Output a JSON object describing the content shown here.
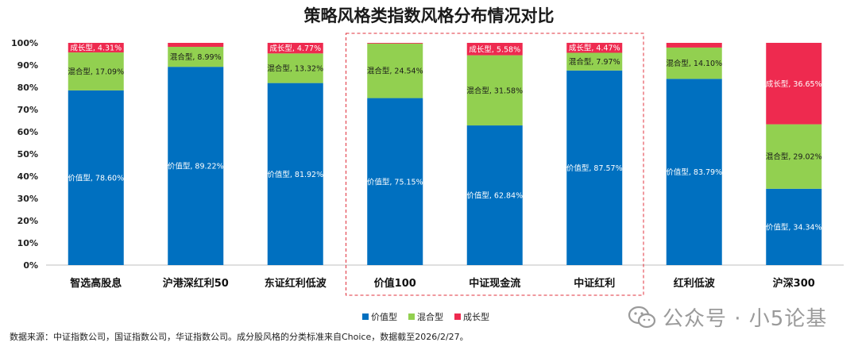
{
  "chart_data": {
    "type": "bar",
    "stacked": true,
    "percent": true,
    "title": "策略风格类指数风格分布情况对比",
    "categories": [
      "智选高股息",
      "沪港深红利50",
      "东证红利低波",
      "价值100",
      "中证现金流",
      "中证红利",
      "红利低波",
      "沪深300"
    ],
    "series": [
      {
        "name": "价值型",
        "color": "#0070C0",
        "values": [
          78.6,
          89.22,
          81.92,
          75.15,
          62.84,
          87.57,
          83.79,
          34.34
        ],
        "labels": [
          "价值型, 78.60%",
          "价值型, 89.22%",
          "价值型, 81.92%",
          "价值型, 75.15%",
          "价值型, 62.84%",
          "价值型, 87.57%",
          "价值型, 83.79%",
          "价值型, 34.34%"
        ]
      },
      {
        "name": "混合型",
        "color": "#92D050",
        "values": [
          17.09,
          8.99,
          13.32,
          24.54,
          31.58,
          7.97,
          14.1,
          29.02
        ],
        "labels": [
          "混合型, 17.09%",
          "混合型, 8.99%",
          "混合型, 13.32%",
          "混合型, 24.54%",
          "混合型, 31.58%",
          "混合型, 7.97%",
          "混合型, 14.10%",
          "混合型, 29.02%"
        ]
      },
      {
        "name": "成长型",
        "color": "#EE2A4F",
        "values": [
          4.31,
          1.79,
          4.77,
          0.31,
          5.58,
          4.47,
          2.11,
          36.65
        ],
        "labels": [
          "成长型, 4.31%",
          null,
          "成长型, 4.77%",
          null,
          "成长型, 5.58%",
          "成长型, 4.47%",
          null,
          "成长型, 36.65%"
        ]
      }
    ],
    "ylim": [
      0,
      100
    ],
    "yticks": [
      "0%",
      "10%",
      "20%",
      "30%",
      "40%",
      "50%",
      "60%",
      "70%",
      "80%",
      "90%",
      "100%"
    ],
    "highlight_categories": [
      "价值100",
      "中证现金流",
      "中证红利"
    ],
    "legend_position": "bottom-center"
  },
  "source_note": "数据来源：中证指数公司，国证指数公司，华证指数公司。成分股风格的分类标准来自Choice，数据截至2026/2/27。",
  "watermark": "公众号 · 小5论基"
}
